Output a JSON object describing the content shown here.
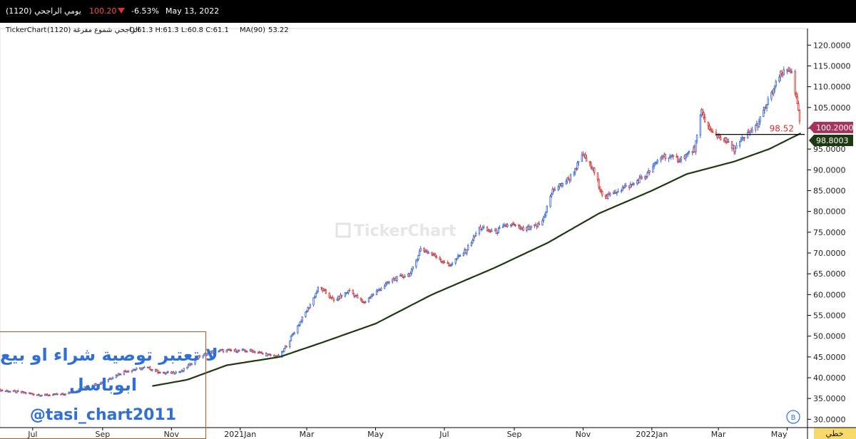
{
  "header": {
    "symbol": "الراجحي (1120)",
    "period": "يومي",
    "last_price": "100.20",
    "change_pct": "-6.53%",
    "date": "May 13, 2022",
    "down_arrow_icon": "triangle-down-icon",
    "up_color": "#3b6bd6",
    "down_color": "#e0302a"
  },
  "legend": {
    "brand": "TickerChart",
    "series_label": "الراجحي شموع مفرغة (1120)",
    "ohlc": "O:61.3  H:61.3  L:60.8  C:61.1",
    "ma_label": "MA(90)",
    "ma_value": "53.22"
  },
  "watermark": {
    "brand": "TickerChart",
    "line1": "لا تعتبر توصية شراء او بيع",
    "line2": "ابوباسل",
    "line3": "@tasi_chart2011"
  },
  "badges": {
    "last": "100.2000",
    "ma": "98.8003",
    "level": "98.52"
  },
  "footer": {
    "scale_button": "خطي",
    "info_icon": "circle-b-icon"
  },
  "chart_data": {
    "type": "candlestick",
    "ylim": [
      28,
      124
    ],
    "y_ticks": [
      "30.0000",
      "35.0000",
      "40.0000",
      "45.0000",
      "50.0000",
      "55.0000",
      "60.0000",
      "65.0000",
      "70.0000",
      "75.0000",
      "80.0000",
      "85.0000",
      "90.0000",
      "95.0000",
      "100.0000",
      "105.0000",
      "110.0000",
      "115.0000",
      "120.0000"
    ],
    "x_ticks": [
      "Jul",
      "Sep",
      "Nov",
      "2021Jan",
      "Mar",
      "May",
      "Jul",
      "Sep",
      "Nov",
      "2022Jan",
      "Mar",
      "May"
    ],
    "price_path": [
      [
        "2020-06-01",
        37.0
      ],
      [
        "2020-06-20",
        36.5
      ],
      [
        "2020-07-10",
        35.8
      ],
      [
        "2020-07-30",
        36.0
      ],
      [
        "2020-08-15",
        37.5
      ],
      [
        "2020-09-01",
        39.0
      ],
      [
        "2020-09-20",
        41.5
      ],
      [
        "2020-10-10",
        42.5
      ],
      [
        "2020-10-25",
        41.0
      ],
      [
        "2020-11-10",
        41.5
      ],
      [
        "2020-11-25",
        45.0
      ],
      [
        "2020-12-10",
        46.5
      ],
      [
        "2020-12-25",
        46.5
      ],
      [
        "2021-01-10",
        46.5
      ],
      [
        "2021-01-25",
        45.5
      ],
      [
        "2021-02-05",
        45.0
      ],
      [
        "2021-02-20",
        52.0
      ],
      [
        "2021-03-05",
        58.0
      ],
      [
        "2021-03-12",
        62.0
      ],
      [
        "2021-03-25",
        58.5
      ],
      [
        "2021-04-08",
        61.0
      ],
      [
        "2021-04-20",
        58.0
      ],
      [
        "2021-05-01",
        60.5
      ],
      [
        "2021-05-15",
        63.5
      ],
      [
        "2021-06-01",
        65.0
      ],
      [
        "2021-06-10",
        71.0
      ],
      [
        "2021-06-25",
        69.0
      ],
      [
        "2021-07-05",
        67.0
      ],
      [
        "2021-07-20",
        70.5
      ],
      [
        "2021-08-01",
        76.0
      ],
      [
        "2021-08-15",
        75.0
      ],
      [
        "2021-08-28",
        77.0
      ],
      [
        "2021-09-10",
        75.5
      ],
      [
        "2021-09-25",
        77.0
      ],
      [
        "2021-10-05",
        85.0
      ],
      [
        "2021-10-20",
        88.0
      ],
      [
        "2021-11-01",
        93.5
      ],
      [
        "2021-11-10",
        90.0
      ],
      [
        "2021-11-20",
        83.0
      ],
      [
        "2021-12-01",
        85.0
      ],
      [
        "2021-12-15",
        86.5
      ],
      [
        "2021-12-28",
        89.0
      ],
      [
        "2022-01-10",
        93.5
      ],
      [
        "2022-01-25",
        92.5
      ],
      [
        "2022-02-08",
        95.0
      ],
      [
        "2022-02-14",
        104.0
      ],
      [
        "2022-02-22",
        99.0
      ],
      [
        "2022-03-05",
        97.5
      ],
      [
        "2022-03-15",
        95.0
      ],
      [
        "2022-03-25",
        98.0
      ],
      [
        "2022-04-05",
        101.0
      ],
      [
        "2022-04-15",
        107.0
      ],
      [
        "2022-04-25",
        113.0
      ],
      [
        "2022-05-05",
        114.0
      ],
      [
        "2022-05-13",
        100.2
      ]
    ],
    "ma90_path": [
      [
        "2020-10-15",
        38.0
      ],
      [
        "2020-11-15",
        39.5
      ],
      [
        "2020-12-20",
        43.0
      ],
      [
        "2021-02-05",
        45.0
      ],
      [
        "2021-03-15",
        48.5
      ],
      [
        "2021-05-01",
        53.0
      ],
      [
        "2021-06-20",
        60.0
      ],
      [
        "2021-08-15",
        66.5
      ],
      [
        "2021-10-01",
        72.5
      ],
      [
        "2021-11-15",
        79.5
      ],
      [
        "2022-01-01",
        85.0
      ],
      [
        "2022-02-01",
        89.0
      ],
      [
        "2022-03-15",
        92.0
      ],
      [
        "2022-04-15",
        95.0
      ],
      [
        "2022-05-13",
        98.8
      ]
    ],
    "last_price": 100.2,
    "ma_last": 98.8003,
    "horizontal_level": 98.52,
    "colors": {
      "up": "#3b6bd6",
      "down": "#e0302a",
      "ma": "#1c3a12",
      "last_badge": "#a8335a",
      "ma_badge": "#1c3a12"
    }
  }
}
